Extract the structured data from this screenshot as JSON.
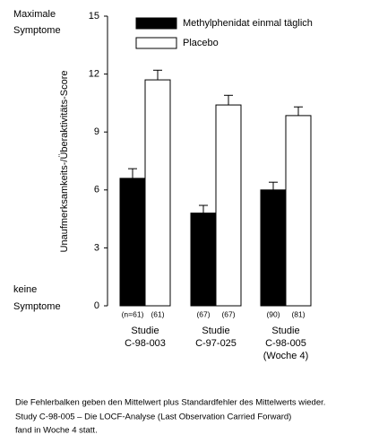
{
  "chart_data": {
    "type": "bar",
    "y_label": "Unaufmerksamkeits-/Überaktivitäts-Score",
    "annotations": {
      "top": [
        "Maximale",
        "Symptome"
      ],
      "bottom": [
        "keine",
        "Symptome"
      ]
    },
    "categories": [
      [
        "Studie",
        "C-98-003"
      ],
      [
        "Studie",
        "C-97-025"
      ],
      [
        "Studie",
        "C-98-005",
        "(Woche 4)"
      ]
    ],
    "series": [
      {
        "name": "Methylphenidat einmal täglich",
        "color": "#000000",
        "values": [
          6.6,
          4.8,
          6.0
        ],
        "errors": [
          0.5,
          0.4,
          0.4
        ],
        "n_labels": [
          "(n=61)",
          "(67)",
          "(90)"
        ]
      },
      {
        "name": "Placebo",
        "color": "#ffffff",
        "values": [
          11.7,
          10.4,
          9.85
        ],
        "errors": [
          0.5,
          0.5,
          0.45
        ],
        "n_labels": [
          "(61)",
          "(67)",
          "(81)"
        ]
      }
    ],
    "ylim": [
      0,
      15
    ],
    "yticks": [
      0,
      3,
      6,
      9,
      12,
      15
    ],
    "footnote": [
      "Die Fehlerbalken geben den Mittelwert plus Standardfehler des Mittelwerts wieder.",
      "Study C-98-005 – Die LOCF-Analyse (Last Observation Carried Forward)",
      "fand in Woche 4 statt."
    ]
  }
}
